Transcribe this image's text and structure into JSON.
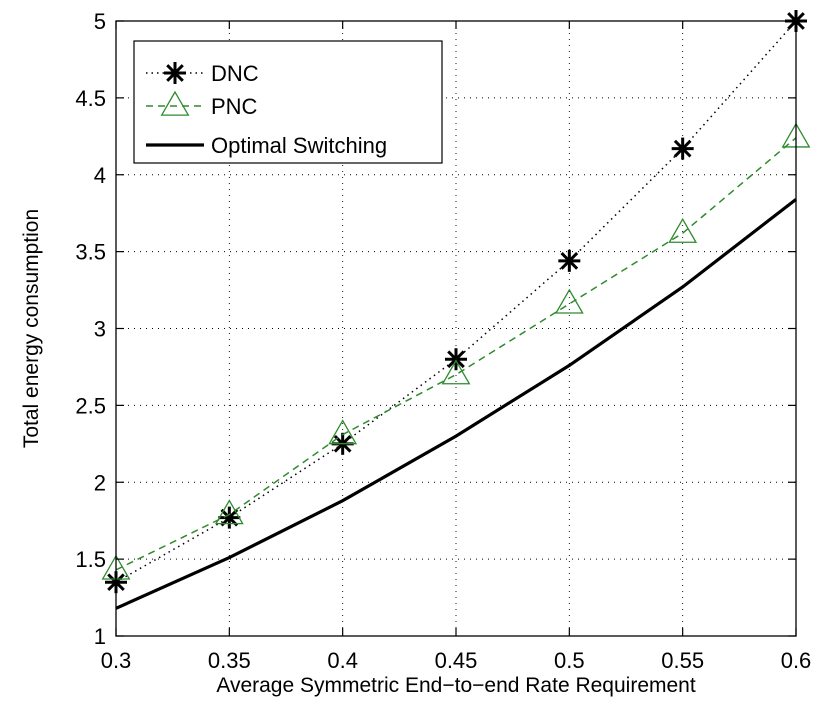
{
  "chart_data": {
    "type": "line",
    "title": "",
    "xlabel": "Average Symmetric End−to−end Rate Requirement",
    "ylabel": "Total energy consumption",
    "xlim": [
      0.3,
      0.6
    ],
    "ylim": [
      1,
      5
    ],
    "x_ticks": [
      "0.3",
      "0.35",
      "0.4",
      "0.45",
      "0.5",
      "0.55",
      "0.6"
    ],
    "y_ticks": [
      "1",
      "1.5",
      "2",
      "2.5",
      "3",
      "3.5",
      "4",
      "4.5",
      "5"
    ],
    "grid": true,
    "legend_position": "top-left",
    "x": [
      0.3,
      0.35,
      0.4,
      0.45,
      0.5,
      0.55,
      0.6
    ],
    "series": [
      {
        "name": "DNC",
        "values": [
          1.35,
          1.77,
          2.25,
          2.8,
          3.44,
          4.17,
          5.0
        ],
        "color": "#000000",
        "line_style": "dotted",
        "marker": "asterisk"
      },
      {
        "name": "PNC",
        "values": [
          1.43,
          1.79,
          2.31,
          2.7,
          3.16,
          3.62,
          4.24
        ],
        "color": "#2e8b2e",
        "line_style": "dashed",
        "marker": "triangle"
      },
      {
        "name": "Optimal Switching",
        "values": [
          1.18,
          1.51,
          1.88,
          2.3,
          2.76,
          3.27,
          3.84
        ],
        "color": "#000000",
        "line_style": "solid",
        "marker": "none"
      }
    ]
  }
}
